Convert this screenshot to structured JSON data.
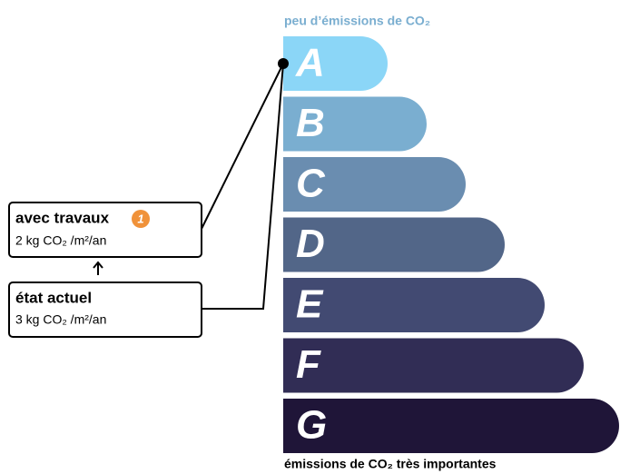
{
  "top_label": "peu d’émissions de CO₂",
  "bottom_label": "émissions de CO₂ très importantes",
  "grades": [
    "A",
    "B",
    "C",
    "D",
    "E",
    "F",
    "G"
  ],
  "boxes": [
    {
      "title": "avec travaux",
      "badge": "1",
      "value": "2 kg CO₂ /m²/an"
    },
    {
      "title": "état actuel",
      "value": "3 kg CO₂ /m²/an"
    }
  ]
}
